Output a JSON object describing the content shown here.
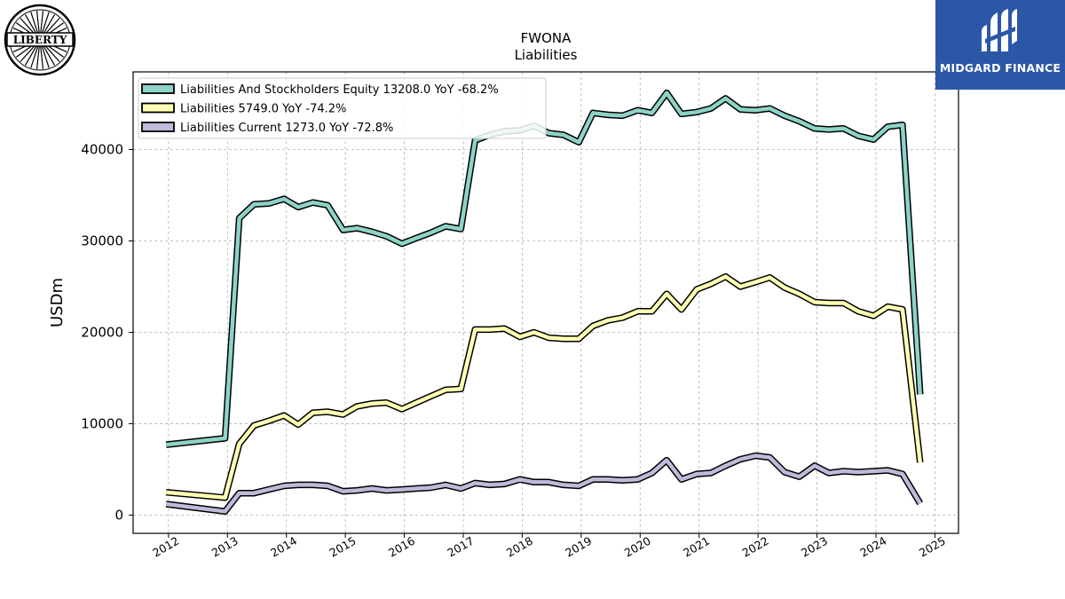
{
  "chart_data": {
    "type": "line",
    "title": "FWONA",
    "subtitle": "Liabilities",
    "ylabel": "USDm",
    "xlabel": "",
    "xlim": [
      2011.4,
      2025.4
    ],
    "ylim": [
      -2000,
      48500
    ],
    "x_ticks": [
      "2012",
      "2013",
      "2014",
      "2015",
      "2016",
      "2017",
      "2018",
      "2019",
      "2020",
      "2021",
      "2022",
      "2023",
      "2024",
      "2025"
    ],
    "y_ticks": [
      "0",
      "10000",
      "20000",
      "30000",
      "40000"
    ],
    "grid": true,
    "legend_position": "top-left",
    "legend": [
      "Liabilities And Stockholders Equity  13208.0 YoY -68.2%",
      "Liabilities  5749.0 YoY -74.2%",
      "Liabilities Current  1273.0 YoY -72.8%"
    ],
    "series": [
      {
        "name": "Liabilities And Stockholders Equity",
        "color": "#8dd3c7",
        "x": [
          2011.96,
          2012.96,
          2013.2,
          2013.45,
          2013.7,
          2013.96,
          2014.2,
          2014.45,
          2014.7,
          2014.96,
          2015.2,
          2015.45,
          2015.7,
          2015.96,
          2016.2,
          2016.45,
          2016.7,
          2016.96,
          2017.2,
          2017.45,
          2017.7,
          2017.96,
          2018.2,
          2018.45,
          2018.7,
          2018.96,
          2019.2,
          2019.45,
          2019.7,
          2019.96,
          2020.2,
          2020.45,
          2020.7,
          2020.96,
          2021.2,
          2021.45,
          2021.7,
          2021.96,
          2022.2,
          2022.45,
          2022.7,
          2022.96,
          2023.2,
          2023.45,
          2023.7,
          2023.96,
          2024.2,
          2024.45,
          2024.75
        ],
        "y": [
          7700,
          8400,
          32500,
          34000,
          34100,
          34600,
          33700,
          34200,
          33900,
          31200,
          31400,
          31000,
          30500,
          29700,
          30300,
          30900,
          31600,
          31300,
          41000,
          41600,
          42000,
          42100,
          42600,
          41800,
          41600,
          40800,
          44000,
          43800,
          43700,
          44300,
          44000,
          46200,
          43900,
          44100,
          44500,
          45600,
          44400,
          44300,
          44500,
          43700,
          43100,
          42300,
          42200,
          42300,
          41500,
          41100,
          42500,
          42700,
          13208
        ]
      },
      {
        "name": "Liabilities",
        "color": "#ffffb3",
        "x": [
          2011.96,
          2012.96,
          2013.2,
          2013.45,
          2013.7,
          2013.96,
          2014.2,
          2014.45,
          2014.7,
          2014.96,
          2015.2,
          2015.45,
          2015.7,
          2015.96,
          2016.2,
          2016.45,
          2016.7,
          2016.96,
          2017.2,
          2017.45,
          2017.7,
          2017.96,
          2018.2,
          2018.45,
          2018.7,
          2018.96,
          2019.2,
          2019.45,
          2019.7,
          2019.96,
          2020.2,
          2020.45,
          2020.7,
          2020.96,
          2021.2,
          2021.45,
          2021.7,
          2021.96,
          2022.2,
          2022.45,
          2022.7,
          2022.96,
          2023.2,
          2023.45,
          2023.7,
          2023.96,
          2024.2,
          2024.45,
          2024.75
        ],
        "y": [
          2500,
          1900,
          7800,
          9800,
          10300,
          10900,
          9900,
          11200,
          11300,
          11000,
          11900,
          12200,
          12300,
          11600,
          12300,
          13000,
          13700,
          13800,
          20300,
          20300,
          20400,
          19500,
          20000,
          19400,
          19300,
          19300,
          20700,
          21300,
          21600,
          22300,
          22300,
          24200,
          22500,
          24700,
          25300,
          26100,
          25000,
          25500,
          26000,
          24900,
          24200,
          23300,
          23200,
          23200,
          22300,
          21800,
          22800,
          22500,
          5749
        ]
      },
      {
        "name": "Liabilities Current",
        "color": "#bebada",
        "x": [
          2011.96,
          2012.96,
          2013.2,
          2013.45,
          2013.7,
          2013.96,
          2014.2,
          2014.45,
          2014.7,
          2014.96,
          2015.2,
          2015.45,
          2015.7,
          2015.96,
          2016.2,
          2016.45,
          2016.7,
          2016.96,
          2017.2,
          2017.45,
          2017.7,
          2017.96,
          2018.2,
          2018.45,
          2018.7,
          2018.96,
          2019.2,
          2019.45,
          2019.7,
          2019.96,
          2020.2,
          2020.45,
          2020.7,
          2020.96,
          2021.2,
          2021.45,
          2021.7,
          2021.96,
          2022.2,
          2022.45,
          2022.7,
          2022.96,
          2023.2,
          2023.45,
          2023.7,
          2023.96,
          2024.2,
          2024.45,
          2024.75
        ],
        "y": [
          1200,
          400,
          2400,
          2400,
          2800,
          3200,
          3300,
          3300,
          3200,
          2600,
          2700,
          2900,
          2700,
          2800,
          2900,
          3000,
          3300,
          2900,
          3500,
          3300,
          3400,
          3900,
          3600,
          3600,
          3300,
          3200,
          3900,
          3900,
          3800,
          3900,
          4600,
          6000,
          3900,
          4500,
          4600,
          5400,
          6100,
          6500,
          6300,
          4700,
          4200,
          5400,
          4600,
          4800,
          4700,
          4800,
          4900,
          4500,
          1273
        ]
      }
    ]
  },
  "branding": {
    "left_logo_text": "LIBERTY",
    "right_logo_text": "MIDGARD FINANCE",
    "brand_color": "#2b57a6"
  }
}
